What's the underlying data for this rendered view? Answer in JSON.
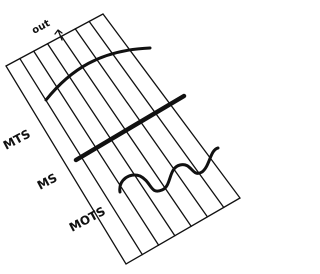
{
  "labels": {
    "out": "out",
    "mts": "MTS",
    "ms": "MS",
    "mots": "MOTS"
  }
}
